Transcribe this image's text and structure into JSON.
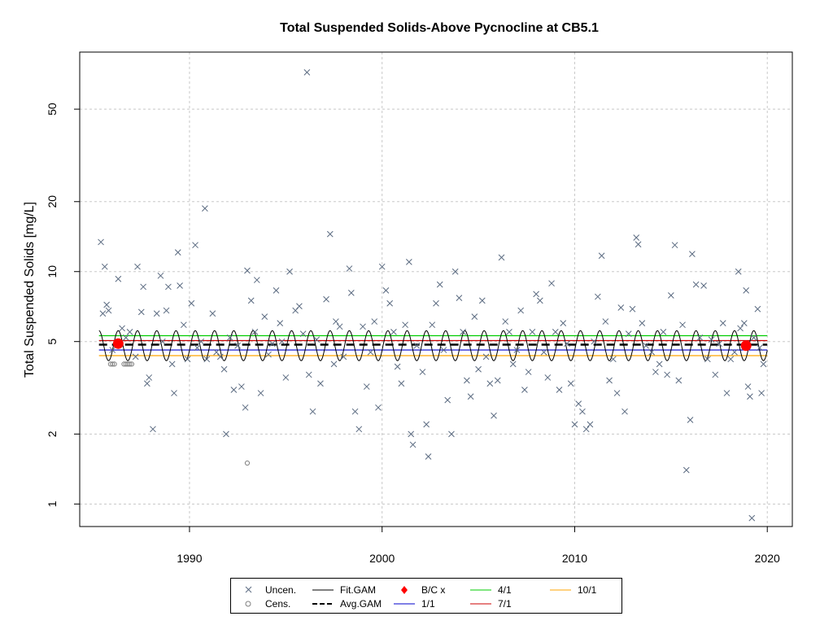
{
  "chart_data": {
    "type": "scatter",
    "title": "Total Suspended Solids-Above Pycnocline at CB5.1",
    "ylabel": "Total Suspended Solids [mg/L]",
    "xlabel": "",
    "y_scale": "log",
    "xlim": [
      1984.3,
      2021.3
    ],
    "ylim": [
      0.8,
      88
    ],
    "x_ticks": [
      1990,
      2000,
      2010,
      2020
    ],
    "y_ticks": [
      1,
      2,
      5,
      10,
      20,
      50
    ],
    "grid": true,
    "colors": {
      "uncensored": "#5a6a80",
      "censored": "#808080",
      "fit_gam": "#000000",
      "avg_gam": "#000000",
      "bc_x": "#ff0000",
      "ratio_1_1": "#0000cc",
      "ratio_4_1": "#00cc00",
      "ratio_7_1": "#cc0000",
      "ratio_10_1": "#ffa500"
    },
    "uncensored_points": [
      [
        1985.4,
        13.4
      ],
      [
        1985.5,
        6.6
      ],
      [
        1985.6,
        10.5
      ],
      [
        1985.7,
        7.2
      ],
      [
        1985.8,
        6.8
      ],
      [
        1986.0,
        4.6
      ],
      [
        1986.3,
        9.3
      ],
      [
        1986.5,
        5.7
      ],
      [
        1986.7,
        5.2
      ],
      [
        1986.9,
        5.5
      ],
      [
        1987.2,
        4.3
      ],
      [
        1987.3,
        10.5
      ],
      [
        1987.5,
        6.7
      ],
      [
        1987.6,
        8.6
      ],
      [
        1987.8,
        3.3
      ],
      [
        1987.9,
        3.5
      ],
      [
        1988.1,
        2.1
      ],
      [
        1988.3,
        6.6
      ],
      [
        1988.5,
        9.6
      ],
      [
        1988.6,
        5.0
      ],
      [
        1988.8,
        6.8
      ],
      [
        1988.9,
        8.6
      ],
      [
        1989.1,
        4.0
      ],
      [
        1989.2,
        3.0
      ],
      [
        1989.4,
        12.1
      ],
      [
        1989.5,
        8.7
      ],
      [
        1989.7,
        5.9
      ],
      [
        1989.9,
        4.2
      ],
      [
        1990.1,
        7.3
      ],
      [
        1990.3,
        13.0
      ],
      [
        1990.4,
        4.7
      ],
      [
        1990.6,
        5.0
      ],
      [
        1990.8,
        18.7
      ],
      [
        1990.9,
        4.2
      ],
      [
        1991.2,
        6.6
      ],
      [
        1991.4,
        4.5
      ],
      [
        1991.6,
        4.3
      ],
      [
        1991.8,
        3.8
      ],
      [
        1991.9,
        2.0
      ],
      [
        1992.1,
        5.2
      ],
      [
        1992.3,
        3.1
      ],
      [
        1992.5,
        4.8
      ],
      [
        1992.7,
        3.2
      ],
      [
        1992.9,
        2.6
      ],
      [
        1993.0,
        10.1
      ],
      [
        1993.2,
        7.5
      ],
      [
        1993.4,
        5.5
      ],
      [
        1993.5,
        9.2
      ],
      [
        1993.7,
        3.0
      ],
      [
        1993.9,
        6.4
      ],
      [
        1994.1,
        4.4
      ],
      [
        1994.3,
        4.9
      ],
      [
        1994.5,
        8.3
      ],
      [
        1994.7,
        6.0
      ],
      [
        1994.8,
        5.0
      ],
      [
        1995.0,
        3.5
      ],
      [
        1995.2,
        10.0
      ],
      [
        1995.5,
        6.8
      ],
      [
        1995.7,
        7.1
      ],
      [
        1995.9,
        5.4
      ],
      [
        1996.1,
        72.0
      ],
      [
        1996.2,
        3.6
      ],
      [
        1996.4,
        2.5
      ],
      [
        1996.6,
        5.1
      ],
      [
        1996.8,
        3.3
      ],
      [
        1997.1,
        7.6
      ],
      [
        1997.3,
        14.5
      ],
      [
        1997.5,
        4.0
      ],
      [
        1997.6,
        6.1
      ],
      [
        1997.8,
        5.8
      ],
      [
        1998.0,
        4.3
      ],
      [
        1998.3,
        10.3
      ],
      [
        1998.4,
        8.1
      ],
      [
        1998.6,
        2.5
      ],
      [
        1998.8,
        2.1
      ],
      [
        1999.0,
        5.8
      ],
      [
        1999.2,
        3.2
      ],
      [
        1999.4,
        4.5
      ],
      [
        1999.6,
        6.1
      ],
      [
        1999.8,
        2.6
      ],
      [
        2000.0,
        10.5
      ],
      [
        2000.2,
        8.3
      ],
      [
        2000.4,
        7.3
      ],
      [
        2000.6,
        5.5
      ],
      [
        2000.8,
        3.9
      ],
      [
        2001.0,
        3.3
      ],
      [
        2001.2,
        5.9
      ],
      [
        2001.4,
        11.0
      ],
      [
        2001.5,
        2.0
      ],
      [
        2001.6,
        1.8
      ],
      [
        2001.8,
        4.8
      ],
      [
        2002.1,
        3.7
      ],
      [
        2002.3,
        2.2
      ],
      [
        2002.4,
        1.6
      ],
      [
        2002.6,
        5.9
      ],
      [
        2002.8,
        7.3
      ],
      [
        2003.0,
        8.8
      ],
      [
        2003.2,
        4.6
      ],
      [
        2003.4,
        2.8
      ],
      [
        2003.6,
        2.0
      ],
      [
        2003.8,
        10.0
      ],
      [
        2004.0,
        7.7
      ],
      [
        2004.2,
        5.5
      ],
      [
        2004.4,
        3.4
      ],
      [
        2004.6,
        2.9
      ],
      [
        2004.8,
        6.4
      ],
      [
        2005.0,
        3.8
      ],
      [
        2005.2,
        7.5
      ],
      [
        2005.4,
        4.3
      ],
      [
        2005.6,
        3.3
      ],
      [
        2005.8,
        2.4
      ],
      [
        2006.0,
        3.4
      ],
      [
        2006.2,
        11.5
      ],
      [
        2006.4,
        6.1
      ],
      [
        2006.6,
        5.5
      ],
      [
        2006.8,
        4.0
      ],
      [
        2007.0,
        4.6
      ],
      [
        2007.2,
        6.8
      ],
      [
        2007.4,
        3.1
      ],
      [
        2007.6,
        3.7
      ],
      [
        2007.8,
        5.5
      ],
      [
        2008.0,
        8.0
      ],
      [
        2008.2,
        7.5
      ],
      [
        2008.4,
        4.5
      ],
      [
        2008.6,
        3.5
      ],
      [
        2008.8,
        8.9
      ],
      [
        2009.0,
        5.5
      ],
      [
        2009.2,
        3.1
      ],
      [
        2009.4,
        6.0
      ],
      [
        2009.6,
        4.9
      ],
      [
        2009.8,
        3.3
      ],
      [
        2010.0,
        2.2
      ],
      [
        2010.2,
        2.7
      ],
      [
        2010.4,
        2.5
      ],
      [
        2010.6,
        2.1
      ],
      [
        2010.8,
        2.2
      ],
      [
        2011.0,
        5.0
      ],
      [
        2011.2,
        7.8
      ],
      [
        2011.4,
        11.7
      ],
      [
        2011.6,
        6.1
      ],
      [
        2011.8,
        3.4
      ],
      [
        2012.0,
        4.2
      ],
      [
        2012.2,
        3.0
      ],
      [
        2012.4,
        7.0
      ],
      [
        2012.6,
        2.5
      ],
      [
        2012.8,
        5.4
      ],
      [
        2013.0,
        6.9
      ],
      [
        2013.2,
        14.0
      ],
      [
        2013.3,
        13.1
      ],
      [
        2013.5,
        6.0
      ],
      [
        2013.7,
        4.8
      ],
      [
        2014.0,
        4.5
      ],
      [
        2014.2,
        3.7
      ],
      [
        2014.4,
        4.0
      ],
      [
        2014.6,
        5.5
      ],
      [
        2014.8,
        3.6
      ],
      [
        2015.0,
        7.9
      ],
      [
        2015.2,
        13.0
      ],
      [
        2015.4,
        3.4
      ],
      [
        2015.6,
        5.9
      ],
      [
        2015.8,
        1.4
      ],
      [
        2016.0,
        2.3
      ],
      [
        2016.1,
        11.9
      ],
      [
        2016.3,
        8.8
      ],
      [
        2016.5,
        5.2
      ],
      [
        2016.7,
        8.7
      ],
      [
        2016.9,
        4.2
      ],
      [
        2017.1,
        5.1
      ],
      [
        2017.3,
        3.6
      ],
      [
        2017.5,
        4.9
      ],
      [
        2017.7,
        6.0
      ],
      [
        2017.9,
        3.0
      ],
      [
        2018.1,
        4.2
      ],
      [
        2018.3,
        4.5
      ],
      [
        2018.5,
        10.0
      ],
      [
        2018.6,
        5.7
      ],
      [
        2018.8,
        6.0
      ],
      [
        2018.9,
        8.3
      ],
      [
        2019.0,
        3.2
      ],
      [
        2019.1,
        2.9
      ],
      [
        2019.2,
        0.87
      ],
      [
        2019.3,
        5.2
      ],
      [
        2019.5,
        6.9
      ],
      [
        2019.6,
        4.7
      ],
      [
        2019.7,
        3.0
      ],
      [
        2019.8,
        4.0
      ]
    ],
    "censored_points": [
      [
        1985.9,
        4.0
      ],
      [
        1986.0,
        4.0
      ],
      [
        1986.1,
        4.0
      ],
      [
        1986.6,
        4.0
      ],
      [
        1986.7,
        4.0
      ],
      [
        1986.8,
        4.0
      ],
      [
        1986.9,
        4.0
      ],
      [
        1987.0,
        4.0
      ],
      [
        1993.0,
        1.5
      ]
    ],
    "fit_gam": {
      "description_free": true,
      "center": 4.8,
      "amplitude_factor": 1.16,
      "x_start": 1985.3,
      "x_end": 2020.0
    },
    "avg_gam": {
      "value": 4.85,
      "x_start": 1985.3,
      "x_end": 2020.0
    },
    "ratio_lines": [
      {
        "name": "1/1",
        "value": 4.6
      },
      {
        "name": "4/1",
        "value": 5.3
      },
      {
        "name": "7/1",
        "value": 5.05
      },
      {
        "name": "10/1",
        "value": 4.35
      }
    ],
    "bc_points": [
      [
        1986.3,
        4.9
      ],
      [
        2018.9,
        4.8
      ]
    ]
  },
  "legend": {
    "items": [
      {
        "key": "uncen",
        "label": "Uncen."
      },
      {
        "key": "cens",
        "label": "Cens."
      },
      {
        "key": "fitgam",
        "label": "Fit.GAM"
      },
      {
        "key": "avggam",
        "label": "Avg.GAM"
      },
      {
        "key": "bcx",
        "label": "B/C x"
      },
      {
        "key": "r11",
        "label": "1/1"
      },
      {
        "key": "r41",
        "label": "4/1"
      },
      {
        "key": "r71",
        "label": "7/1"
      },
      {
        "key": "r101",
        "label": "10/1"
      }
    ]
  }
}
